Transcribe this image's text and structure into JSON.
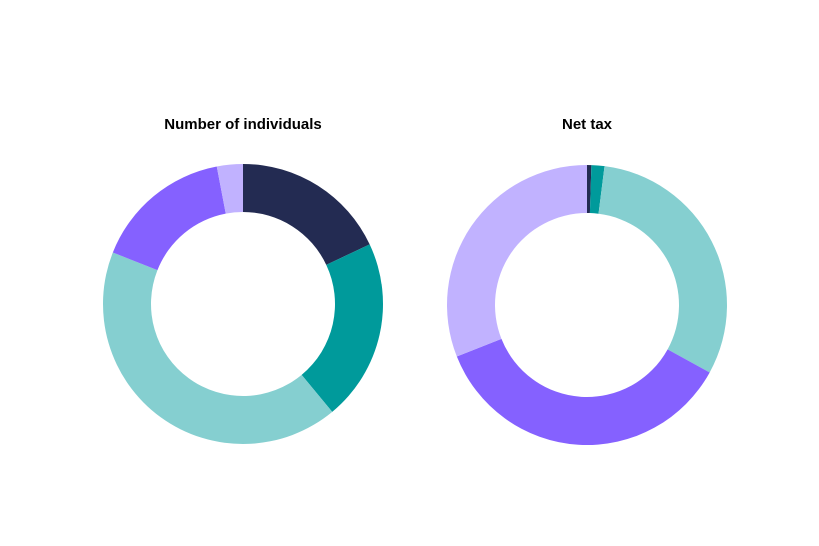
{
  "chart_data": [
    {
      "type": "donut",
      "title": "Number of individuals",
      "values": [
        18,
        21,
        42,
        16,
        3
      ],
      "colors": [
        "#232b52",
        "#009a9b",
        "#85cfd0",
        "#8561ff",
        "#c1b2ff"
      ]
    },
    {
      "type": "donut",
      "title": "Net tax",
      "values": [
        0.5,
        1.5,
        31,
        36,
        31
      ],
      "colors": [
        "#232b52",
        "#009a9b",
        "#85cfd0",
        "#8561ff",
        "#c1b2ff"
      ]
    }
  ]
}
